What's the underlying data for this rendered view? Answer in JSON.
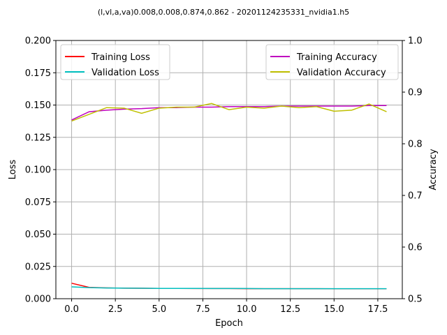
{
  "chart_data": {
    "type": "line",
    "title": "(l,vl,a,va)0.008,0.008,0.874,0.862 - 20201124235331_nvidia1.h5",
    "xlabel": "Epoch",
    "ylabel_left": "Loss",
    "ylabel_right": "Accuracy",
    "xlim": [
      -0.9,
      18.9
    ],
    "ylim_left": [
      0.0,
      0.2
    ],
    "ylim_right": [
      0.5,
      1.0
    ],
    "grid": true,
    "x": [
      0,
      1,
      2,
      3,
      4,
      5,
      6,
      7,
      8,
      9,
      10,
      11,
      12,
      13,
      14,
      15,
      16,
      17,
      18
    ],
    "x_ticks": [
      0.0,
      2.5,
      5.0,
      7.5,
      10.0,
      12.5,
      15.0,
      17.5
    ],
    "x_tick_labels": [
      "0.0",
      "2.5",
      "5.0",
      "7.5",
      "10.0",
      "12.5",
      "15.0",
      "17.5"
    ],
    "y_left_ticks": [
      0.0,
      0.025,
      0.05,
      0.075,
      0.1,
      0.125,
      0.15,
      0.175,
      0.2
    ],
    "y_left_tick_labels": [
      "0.000",
      "0.025",
      "0.050",
      "0.075",
      "0.100",
      "0.125",
      "0.150",
      "0.175",
      "0.200"
    ],
    "y_right_ticks": [
      0.5,
      0.6,
      0.7,
      0.8,
      0.9,
      1.0
    ],
    "y_right_tick_labels": [
      "0.5",
      "0.6",
      "0.7",
      "0.8",
      "0.9",
      "1.0"
    ],
    "legend_left_position": "upper-left",
    "legend_right_position": "upper-right",
    "series": [
      {
        "name": "Training Loss",
        "axis": "left",
        "color": "#ff0000",
        "values": [
          0.012,
          0.0088,
          0.0084,
          0.0082,
          0.0081,
          0.008,
          0.008,
          0.0079,
          0.0079,
          0.0079,
          0.0078,
          0.0078,
          0.0078,
          0.0078,
          0.0078,
          0.0077,
          0.0077,
          0.0077,
          0.0077
        ]
      },
      {
        "name": "Validation Loss",
        "axis": "left",
        "color": "#00bfbf",
        "values": [
          0.0092,
          0.0086,
          0.0083,
          0.0082,
          0.0081,
          0.008,
          0.008,
          0.008,
          0.0079,
          0.0079,
          0.0079,
          0.0078,
          0.0078,
          0.0078,
          0.0078,
          0.0078,
          0.0078,
          0.0078,
          0.0078
        ]
      },
      {
        "name": "Training Accuracy",
        "axis": "right",
        "color": "#bf00bf",
        "values": [
          0.846,
          0.862,
          0.865,
          0.867,
          0.868,
          0.87,
          0.87,
          0.871,
          0.871,
          0.872,
          0.872,
          0.872,
          0.873,
          0.873,
          0.873,
          0.873,
          0.873,
          0.874,
          0.874
        ]
      },
      {
        "name": "Validation Accuracy",
        "axis": "right",
        "color": "#bfbf00",
        "values": [
          0.844,
          0.857,
          0.87,
          0.869,
          0.859,
          0.869,
          0.871,
          0.871,
          0.878,
          0.866,
          0.871,
          0.869,
          0.873,
          0.87,
          0.872,
          0.863,
          0.865,
          0.877,
          0.862
        ]
      }
    ]
  }
}
